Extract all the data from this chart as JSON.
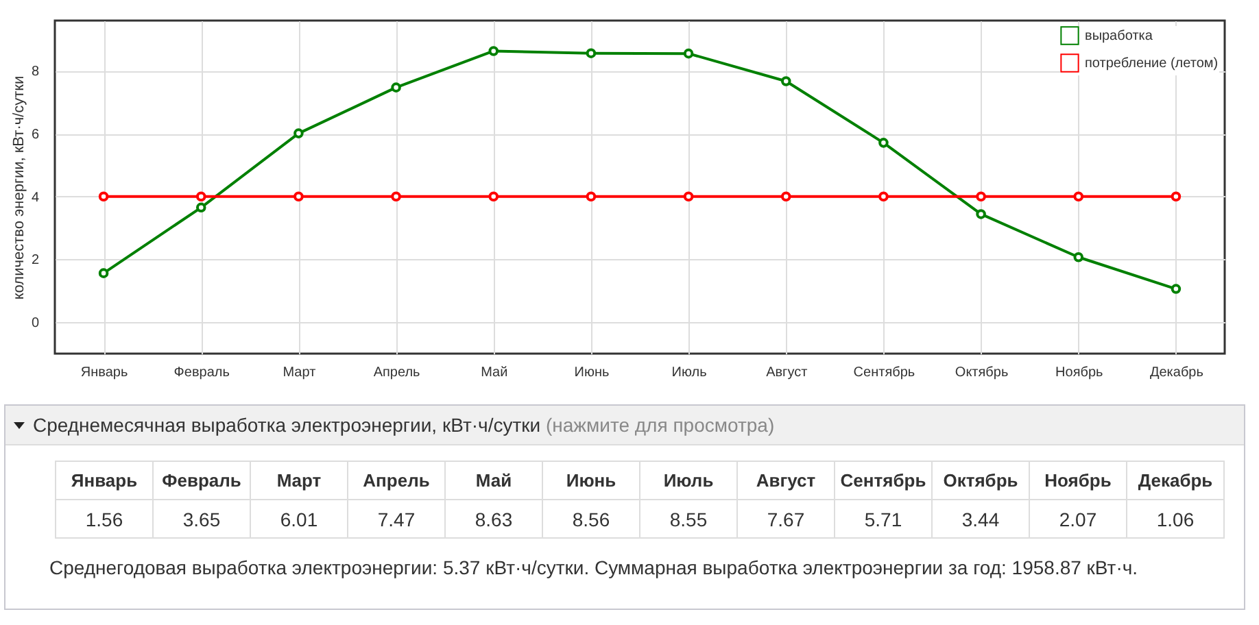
{
  "chart_data": {
    "type": "line",
    "categories": [
      "Январь",
      "Февраль",
      "Март",
      "Апрель",
      "Май",
      "Июнь",
      "Июль",
      "Август",
      "Сентябрь",
      "Октябрь",
      "Ноябрь",
      "Декабрь"
    ],
    "series": [
      {
        "name": "выработка",
        "color": "#008000",
        "values": [
          1.56,
          3.65,
          6.01,
          7.47,
          8.63,
          8.56,
          8.55,
          7.67,
          5.71,
          3.44,
          2.07,
          1.06
        ],
        "value_labels": [
          "1.56",
          "3.65",
          "6.01",
          "7.47",
          "8.63",
          "8.56",
          "8.55",
          "7.67",
          "5.71",
          "3.44",
          "2.07",
          "1.06"
        ]
      },
      {
        "name": "потребление (летом)",
        "color": "#ff0000",
        "values": [
          4,
          4,
          4,
          4,
          4,
          4,
          4,
          4,
          4,
          4,
          4,
          4
        ]
      }
    ],
    "ylabel": "количество энергии, кВт·ч/сутки",
    "ylim": [
      -1,
      9.6
    ],
    "yticks": [
      0,
      2,
      4,
      6,
      8
    ],
    "grid": true,
    "legend": "top right",
    "marker": "circle",
    "line_style": "solid",
    "annotations": [
      "Среднемесячная выработка электроэнергии, кВт·ч/сутки (нажмите для просмотра)",
      "Среднегодовая выработка электроэнергии: 5.37 кВт·ч/сутки. Суммарная выработка электроэнергии за год: 1958.87 кВт·ч."
    ]
  }
}
